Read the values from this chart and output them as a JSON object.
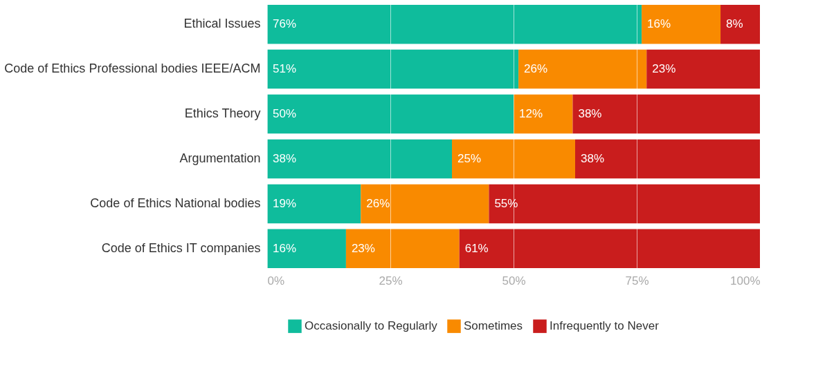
{
  "chart_data": {
    "type": "bar",
    "orientation": "horizontal",
    "stacked": true,
    "categories": [
      "Ethical Issues",
      "Code of Ethics Professional bodies IEEE/ACM",
      "Ethics Theory",
      "Argumentation",
      "Code of Ethics National bodies",
      "Code of Ethics IT companies"
    ],
    "series": [
      {
        "name": "Occasionally to Regularly",
        "color": "#0fbc9c",
        "values": [
          76,
          51,
          50,
          37.5,
          19,
          16
        ],
        "value_labels": [
          "76%",
          "51%",
          "50%",
          "38%",
          "19%",
          "16%"
        ]
      },
      {
        "name": "Sometimes",
        "color": "#f98a00",
        "values": [
          16,
          26,
          12,
          25,
          26,
          23
        ],
        "value_labels": [
          "16%",
          "26%",
          "12%",
          "25%",
          "26%",
          "23%"
        ]
      },
      {
        "name": "Infrequently to Never",
        "color": "#c91d1d",
        "values": [
          8,
          23,
          38,
          37.5,
          55,
          61
        ],
        "value_labels": [
          "8%",
          "23%",
          "38%",
          "38%",
          "55%",
          "61%"
        ]
      }
    ],
    "xlim": [
      0,
      100
    ],
    "xticks": [
      {
        "value": 0,
        "label": "0%"
      },
      {
        "value": 25,
        "label": "25%"
      },
      {
        "value": 50,
        "label": "50%"
      },
      {
        "value": 75,
        "label": "75%"
      },
      {
        "value": 100,
        "label": "100%"
      }
    ],
    "grid": "x",
    "legend": "bottom"
  }
}
